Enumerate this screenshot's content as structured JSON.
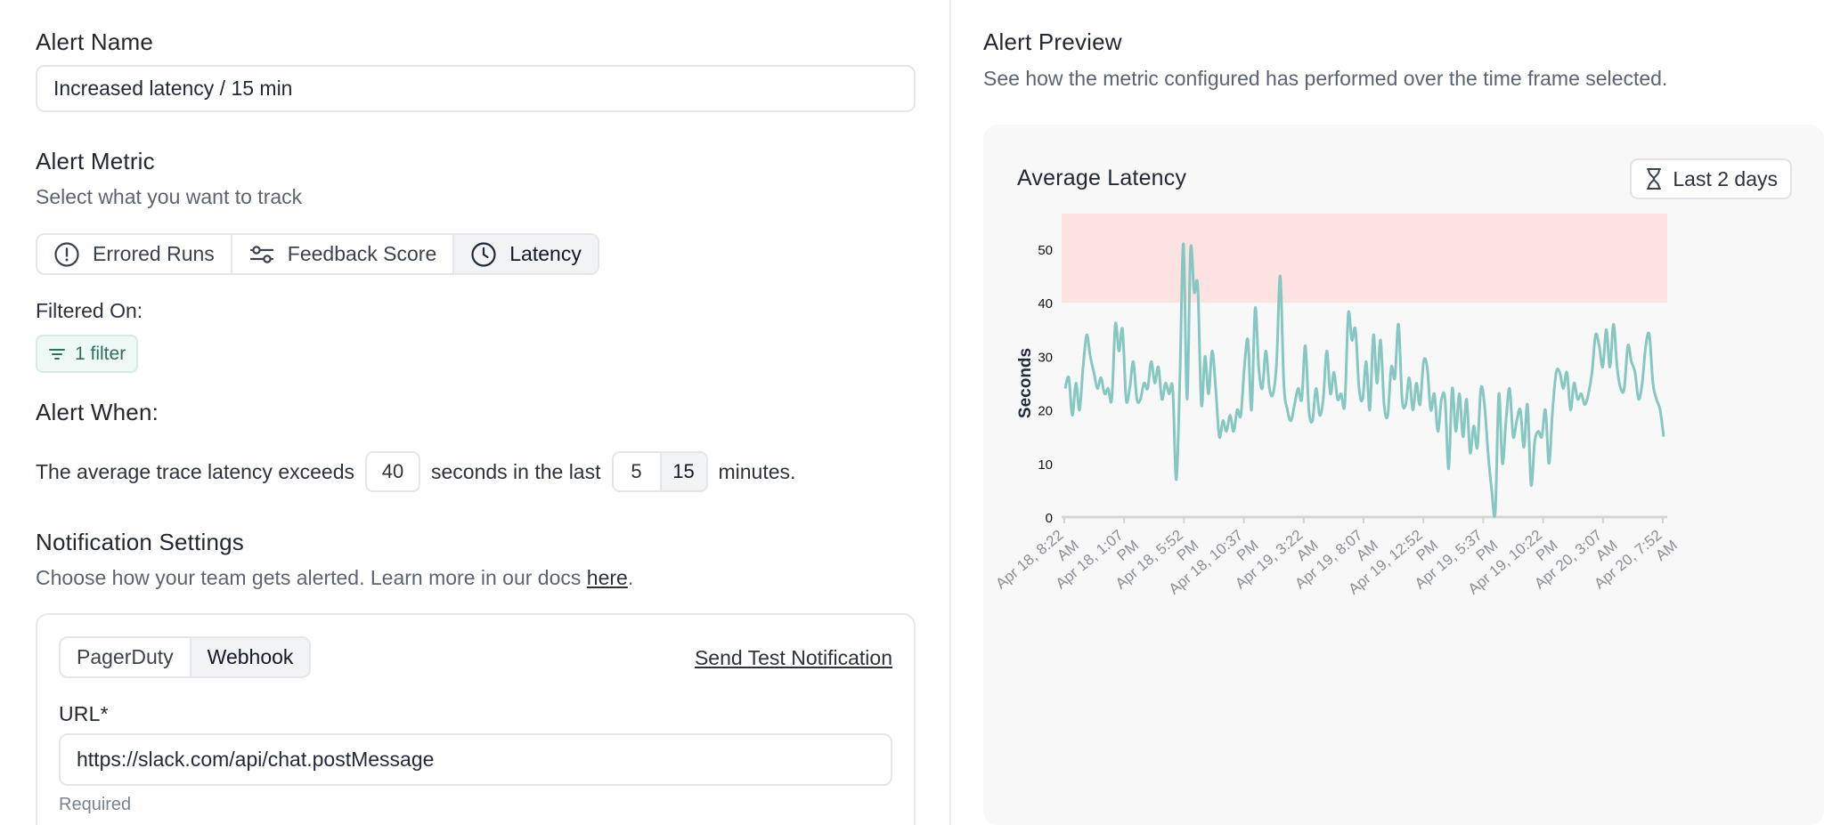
{
  "alert_name": {
    "label": "Alert Name",
    "value": "Increased latency / 15 min"
  },
  "alert_metric": {
    "label": "Alert Metric",
    "description": "Select what you want to track",
    "options": [
      {
        "label": "Errored Runs",
        "icon": "alert-circle-icon"
      },
      {
        "label": "Feedback Score",
        "icon": "sliders-icon"
      },
      {
        "label": "Latency",
        "icon": "clock-icon",
        "selected": true
      }
    ]
  },
  "filter": {
    "label": "Filtered On:",
    "chip": "1 filter"
  },
  "alert_when": {
    "label": "Alert When:",
    "text_before": "The average trace latency exceeds",
    "threshold": "40",
    "text_middle": "seconds in the last",
    "windows": [
      "5",
      "15"
    ],
    "selected_window": "15",
    "text_after": "minutes."
  },
  "notifications": {
    "title": "Notification Settings",
    "description_prefix": "Choose how your team gets alerted. Learn more in our docs ",
    "docs_link": "here",
    "description_suffix": ".",
    "tabs": [
      "PagerDuty",
      "Webhook"
    ],
    "selected_tab": "Webhook",
    "send_test": "Send Test Notification",
    "url_label": "URL*",
    "url_value": "https://slack.com/api/chat.postMessage",
    "url_help": "Required"
  },
  "preview": {
    "title": "Alert Preview",
    "description": "See how the metric configured has performed over the time frame selected.",
    "range_button": "Last 2 days"
  },
  "colors": {
    "line": "#86c7c1",
    "threshold_band": "#fde2e2",
    "axis": "#d4d4d4"
  },
  "chart_data": {
    "type": "line",
    "title": "Average Latency",
    "ylabel": "Seconds",
    "ylim": [
      0,
      65
    ],
    "yticks": [
      0,
      10,
      20,
      30,
      40,
      50
    ],
    "threshold": 40,
    "threshold_band": [
      40,
      65
    ],
    "x_ticks": [
      [
        "Apr 18, 8:22",
        "AM"
      ],
      [
        "Apr 18, 1:07",
        "PM"
      ],
      [
        "Apr 18, 5:52",
        "PM"
      ],
      [
        "Apr 18, 10:37",
        "PM"
      ],
      [
        "Apr 19, 3:22",
        "AM"
      ],
      [
        "Apr 19, 8:07",
        "AM"
      ],
      [
        "Apr 19, 12:52",
        "PM"
      ],
      [
        "Apr 19, 5:37",
        "PM"
      ],
      [
        "Apr 19, 10:22",
        "PM"
      ],
      [
        "Apr 20, 3:07",
        "AM"
      ],
      [
        "Apr 20, 7:52",
        "AM"
      ]
    ],
    "series": [
      {
        "values": [
          24,
          26,
          19,
          25,
          20,
          28,
          34,
          30,
          27,
          24,
          26,
          23,
          24,
          22,
          36,
          31,
          35,
          22,
          24,
          29,
          22,
          22,
          25,
          24,
          29,
          25,
          28,
          22,
          25,
          23,
          24,
          7,
          26,
          51,
          22,
          50,
          42,
          43,
          21,
          30,
          23,
          31,
          24,
          15,
          18,
          16,
          19,
          16,
          20,
          19,
          28,
          33,
          20,
          39,
          28,
          24,
          31,
          24,
          23,
          29,
          45,
          25,
          20,
          18,
          21,
          24,
          22,
          32,
          20,
          18,
          24,
          19,
          22,
          31,
          23,
          27,
          22,
          23,
          21,
          38,
          33,
          35,
          24,
          22,
          29,
          20,
          34,
          25,
          33,
          21,
          19,
          28,
          26,
          36,
          22,
          21,
          26,
          20,
          25,
          21,
          29,
          28,
          20,
          23,
          16,
          22,
          22,
          9,
          24,
          16,
          23,
          15,
          22,
          12,
          17,
          13,
          24,
          21,
          12,
          5,
          1,
          23,
          10,
          18,
          24,
          15,
          18,
          20,
          13,
          21,
          6,
          14,
          16,
          15,
          20,
          10,
          20,
          27,
          27,
          24,
          27,
          20,
          25,
          22,
          23,
          21,
          23,
          27,
          34,
          32,
          28,
          35,
          28,
          36,
          28,
          24,
          24,
          32,
          29,
          27,
          22,
          25,
          32,
          34,
          25,
          22,
          20,
          15
        ]
      }
    ]
  }
}
